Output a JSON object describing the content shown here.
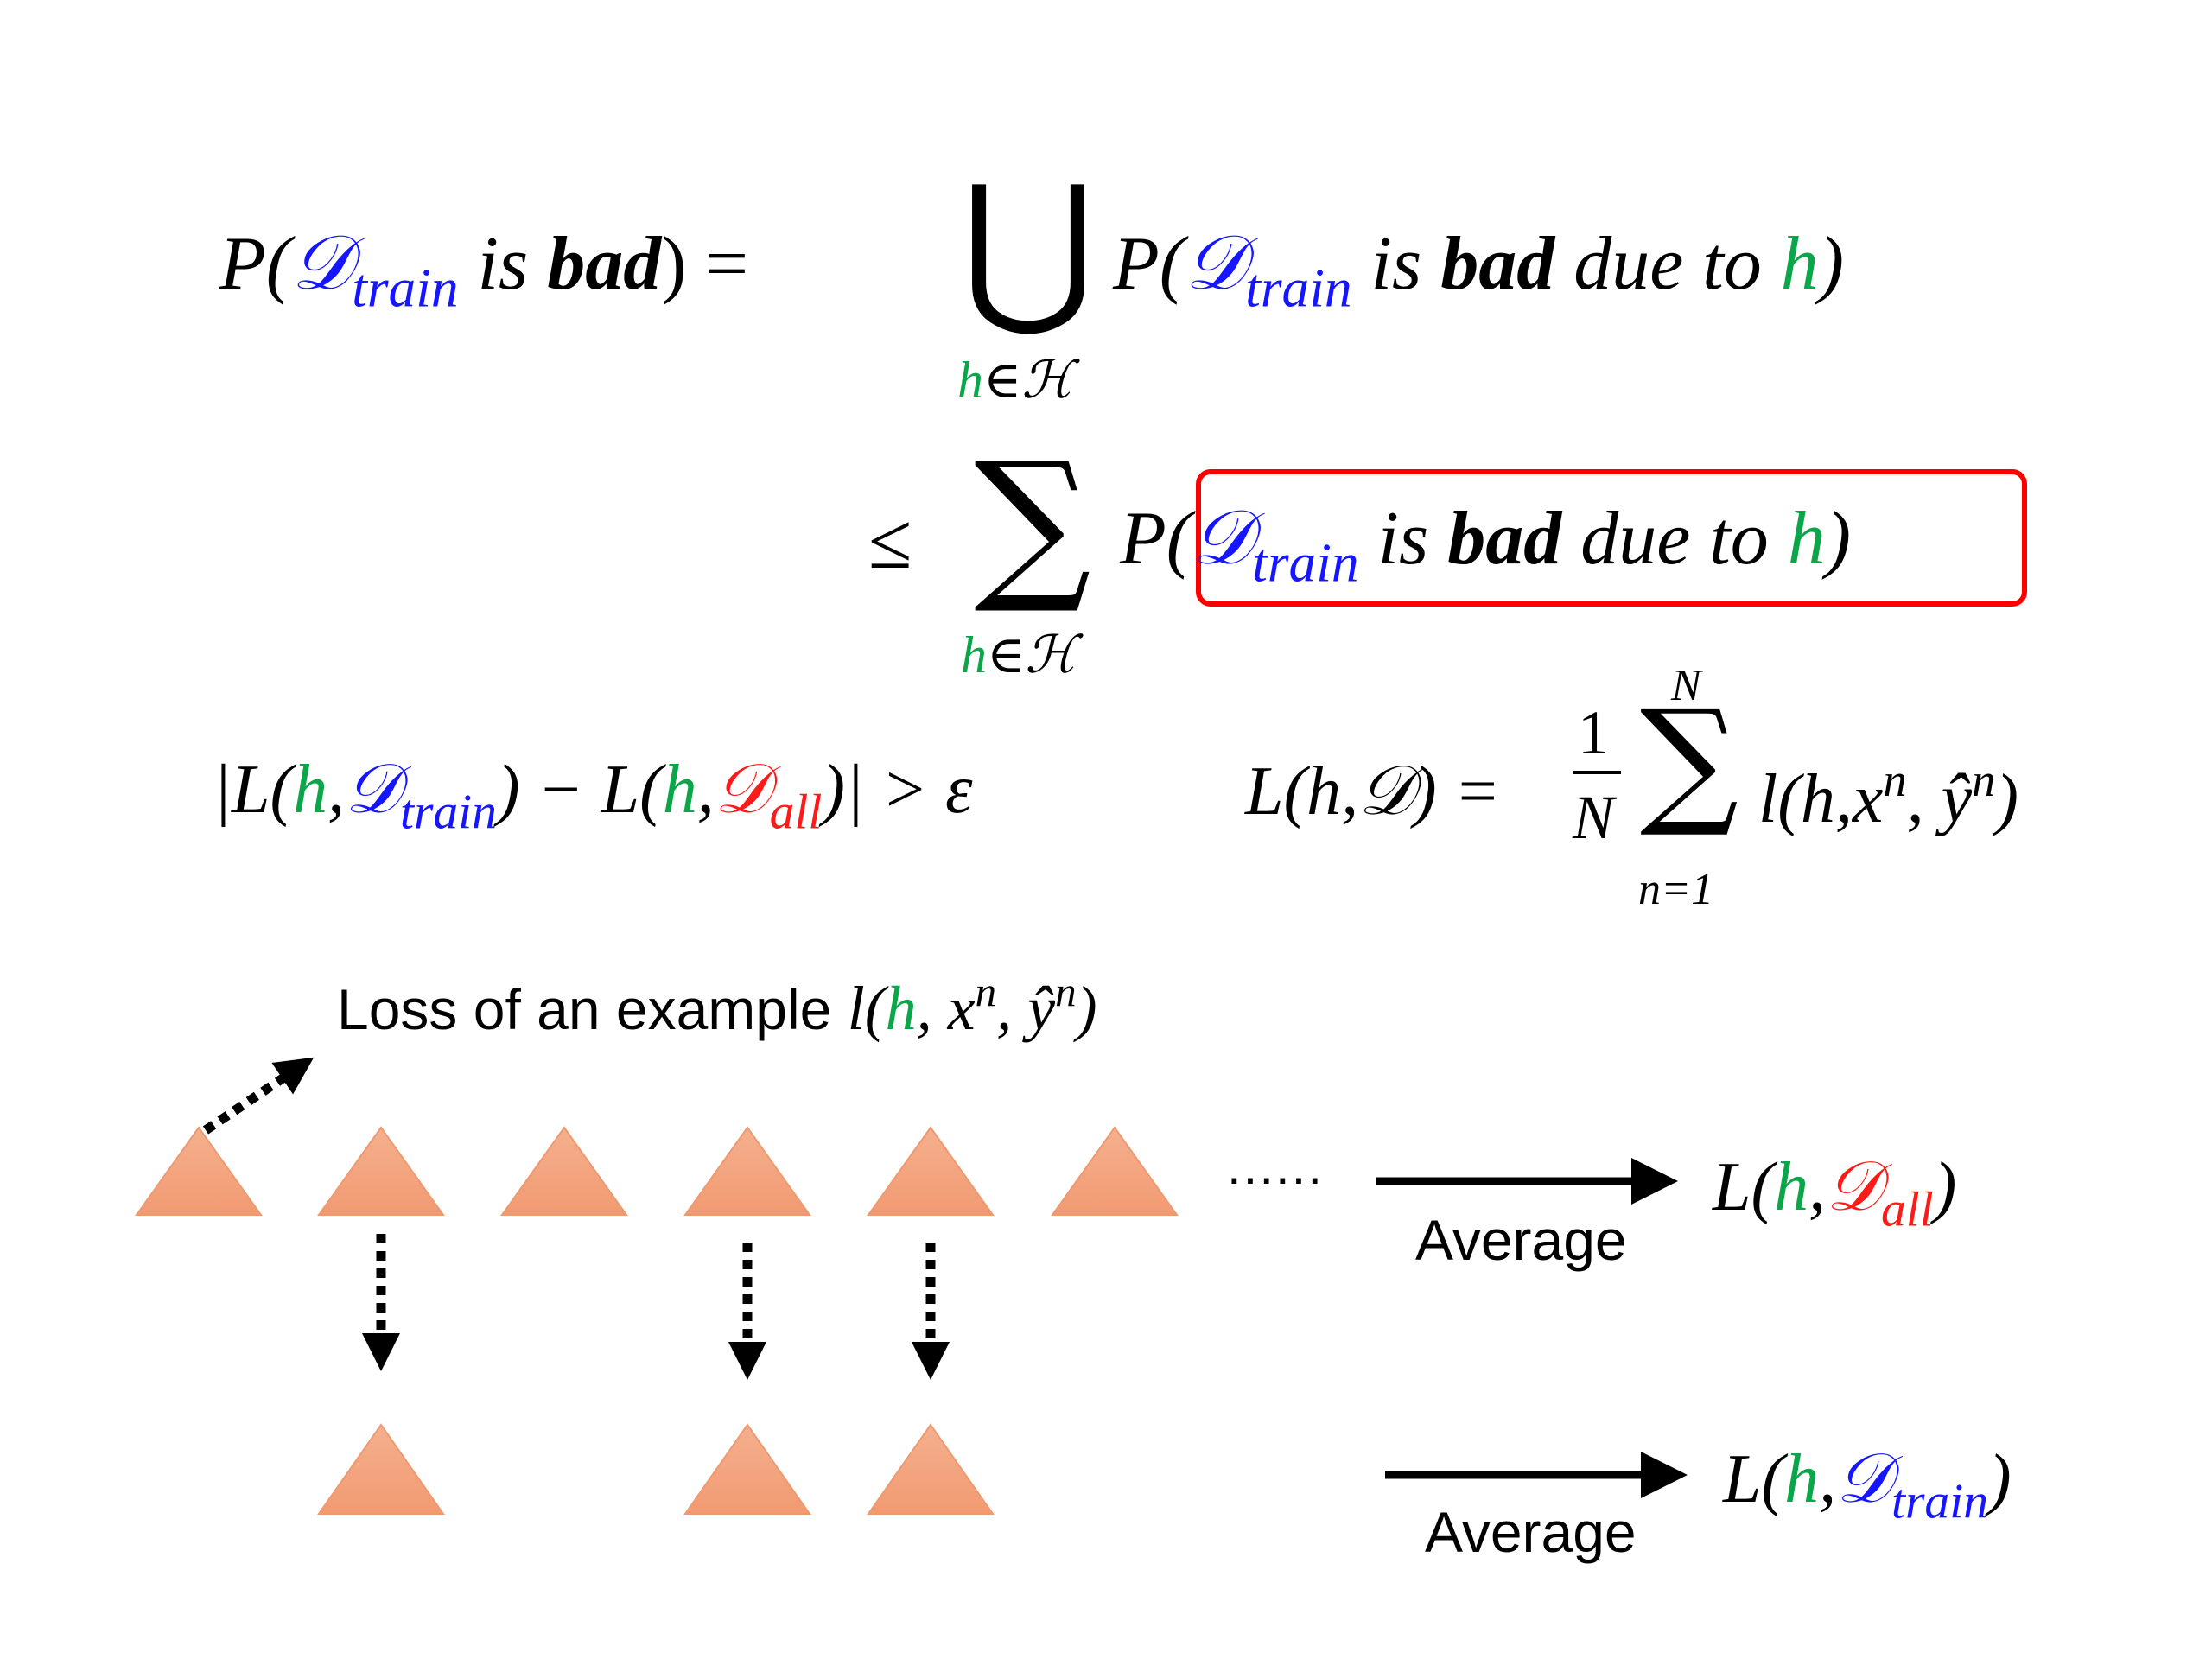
{
  "formula_1": {
    "lhs": [
      "P(",
      "𝒟",
      "train",
      " is ",
      "bad",
      ") ="
    ],
    "operator": "⋃",
    "under": [
      "h",
      "∈ℋ"
    ],
    "rhs": [
      "P(",
      "𝒟",
      "train",
      " is ",
      "bad",
      " due to ",
      "h",
      ")"
    ]
  },
  "formula_2": {
    "lhs": "≤",
    "operator": "∑",
    "under": [
      "h",
      "∈ℋ"
    ],
    "rhs": [
      "P(",
      "𝒟",
      "train",
      " is ",
      "bad",
      " due to ",
      "h",
      ")"
    ]
  },
  "formula_3": [
    "|L(",
    "h",
    ",",
    "𝒟",
    "train",
    ") − L(",
    "h",
    ",",
    "𝒟",
    "all",
    ")| > ε"
  ],
  "formula_4": {
    "lhs": "L(h,𝒟) =",
    "numerator": "1",
    "denominator": "N",
    "over": "N",
    "operator": "∑",
    "under": "n=1",
    "rhs": [
      "l(h,",
      "x",
      "n",
      ", ",
      "ŷ",
      "n",
      ")"
    ]
  },
  "caption": [
    "Loss of an example ",
    "l(",
    "h",
    ", ",
    "x",
    "n",
    ", ",
    "ŷ",
    "n",
    ")"
  ],
  "ellipsis": "......",
  "average_all": {
    "label": "Average",
    "result": [
      "L(",
      "h",
      ",",
      "𝒟",
      "all",
      ")"
    ]
  },
  "average_train": {
    "label": "Average",
    "result": [
      "L(",
      "h",
      ",",
      "𝒟",
      "train",
      ")"
    ]
  }
}
